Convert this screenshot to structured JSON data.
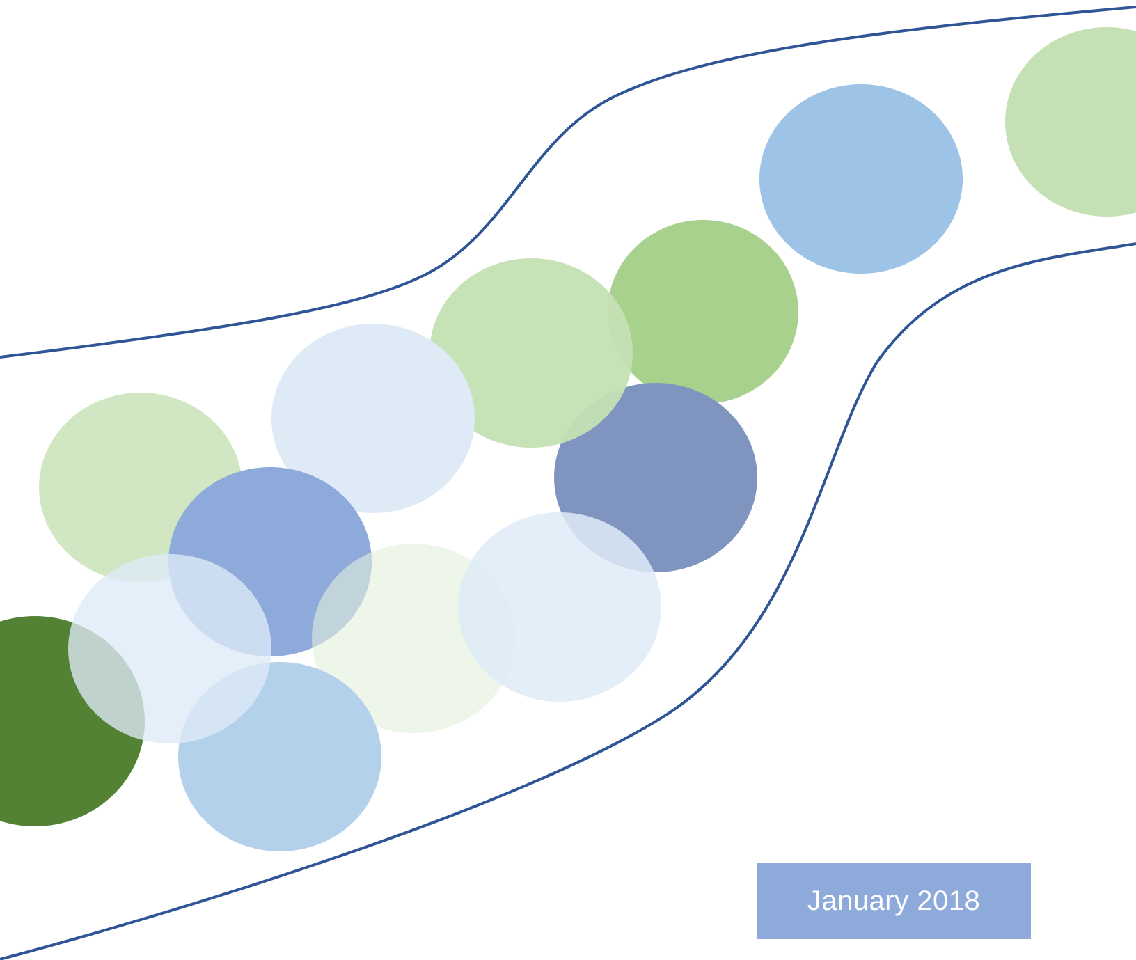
{
  "cover": {
    "date": "January 2018"
  },
  "colors": {
    "curve": "#2f5597",
    "date_box": "#8eaadb",
    "date_text": "#ffffff"
  }
}
